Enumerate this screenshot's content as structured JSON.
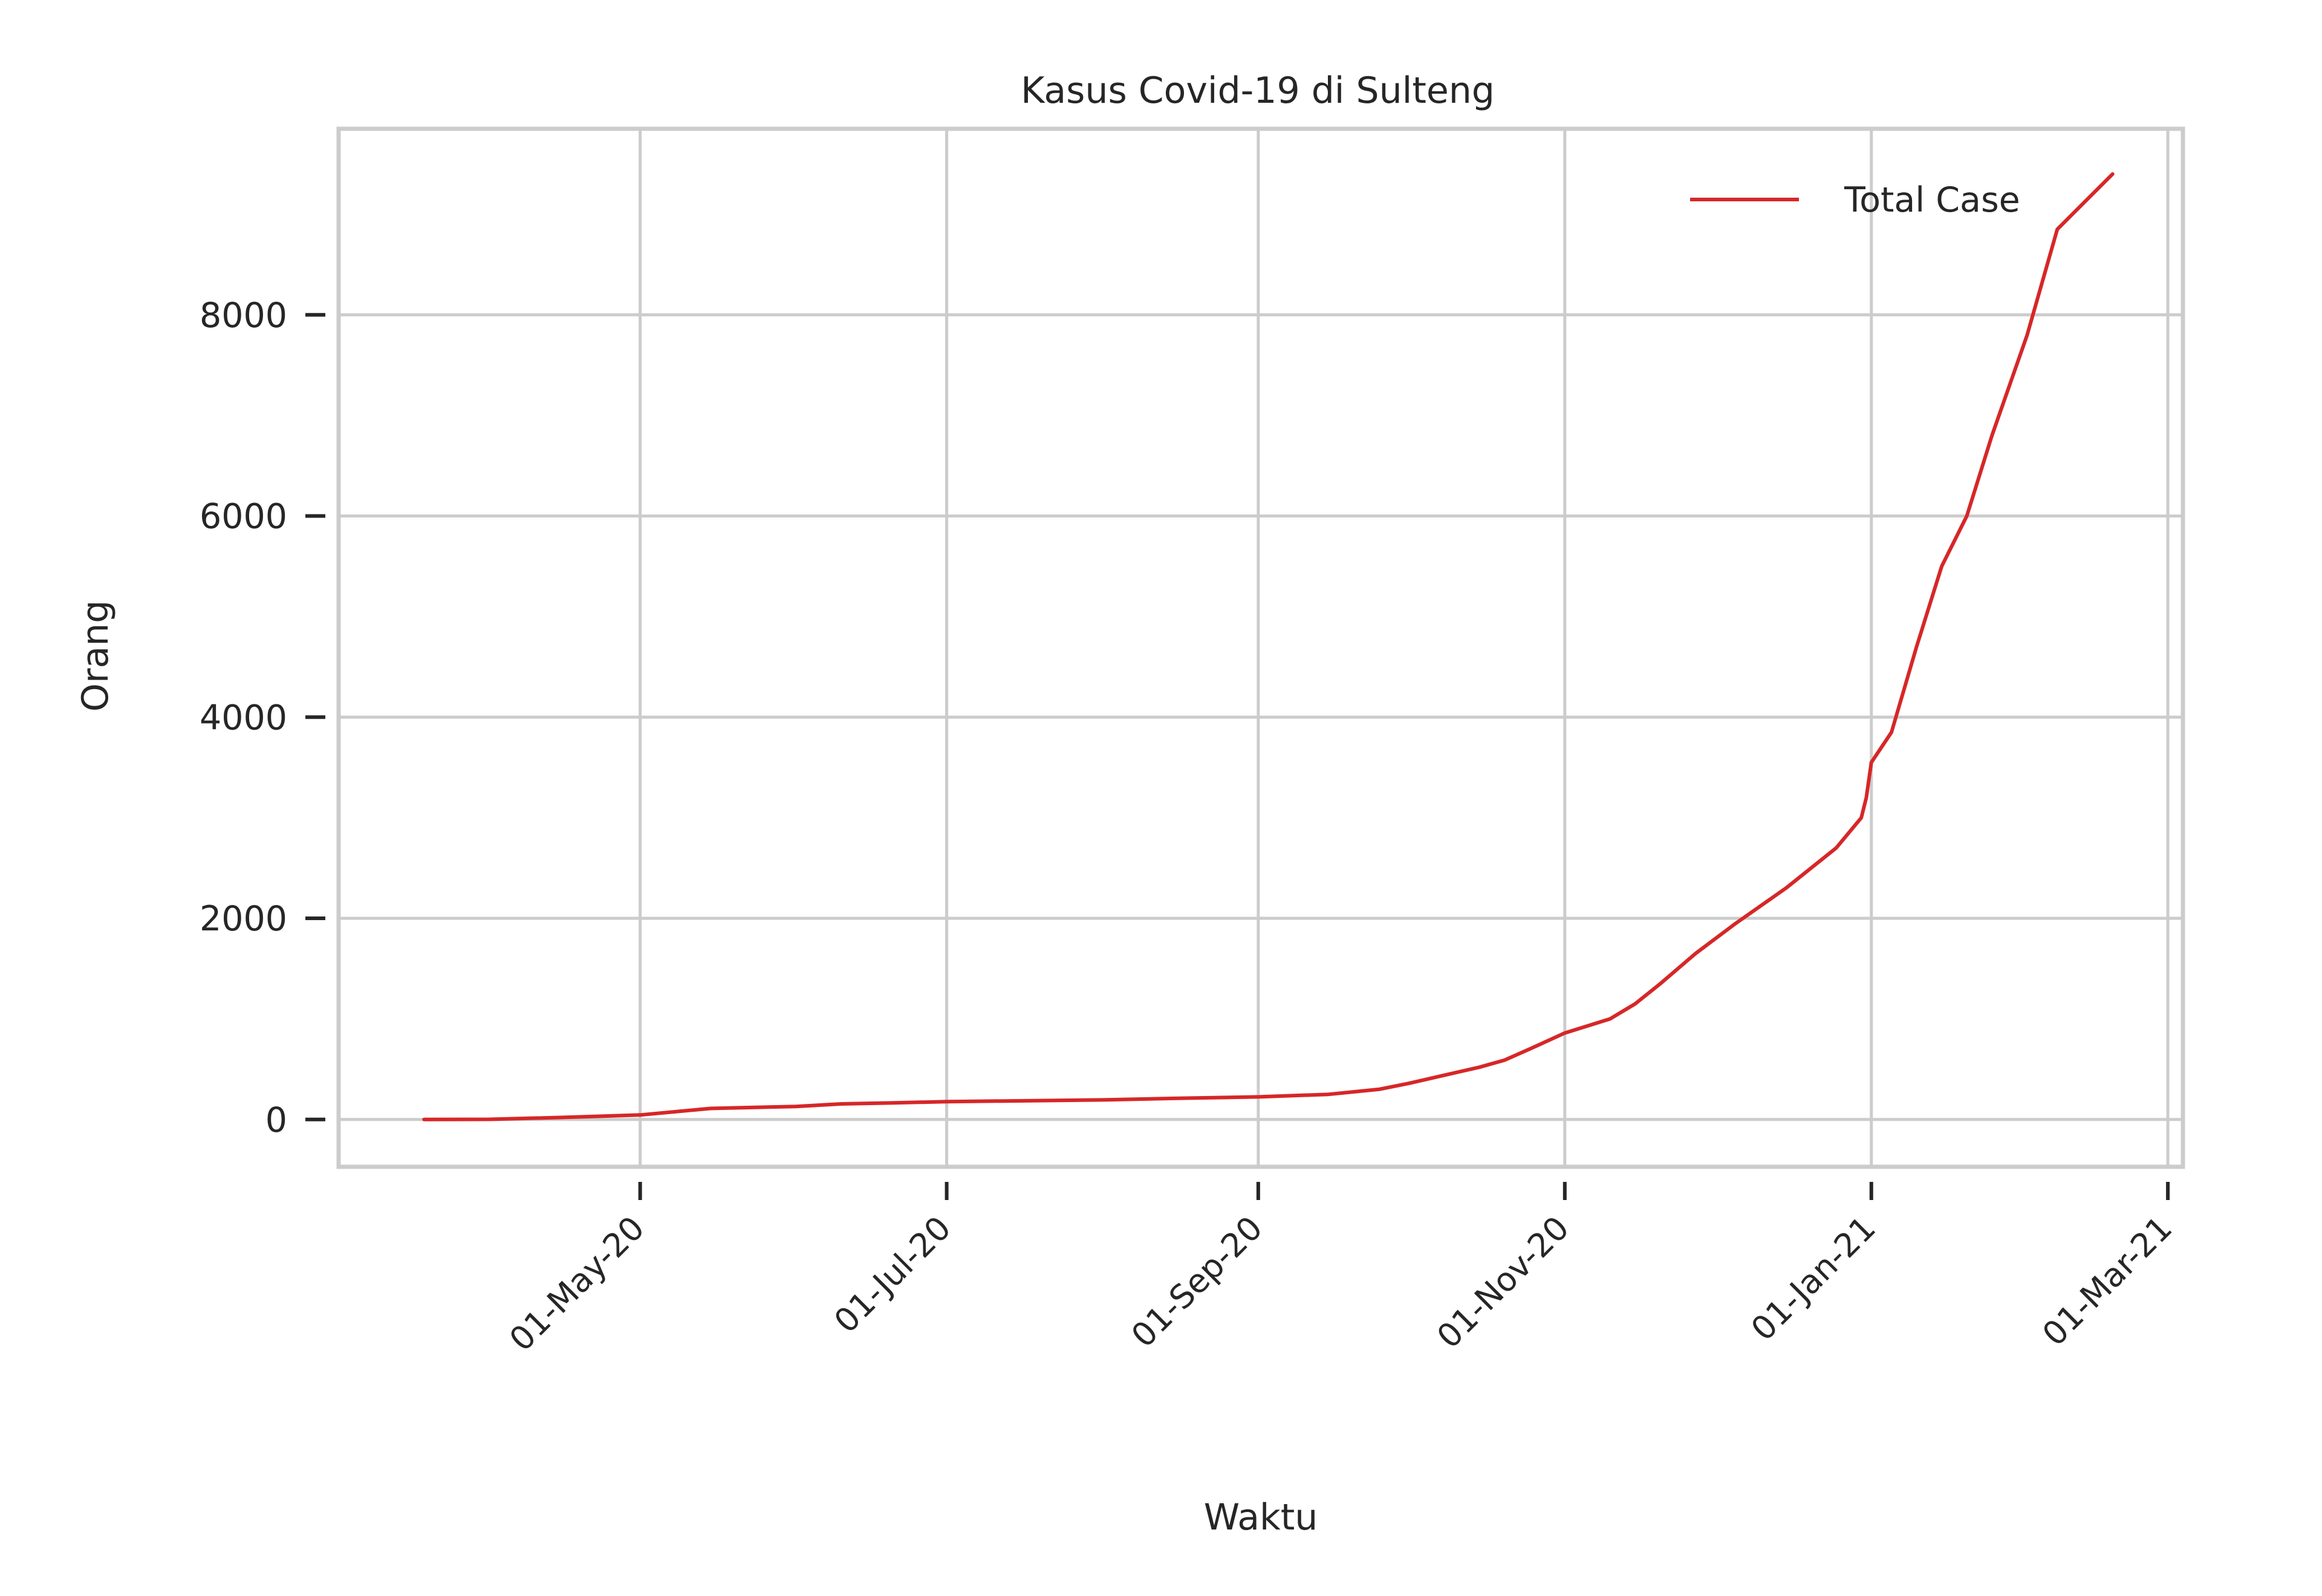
{
  "chart_data": {
    "type": "line",
    "title": "Kasus Covid-19 di Sulteng",
    "xlabel": "Waktu",
    "ylabel": "Orang",
    "x_ticks": [
      "01-May-20",
      "01-Jul-20",
      "01-Sep-20",
      "01-Nov-20",
      "01-Jan-21",
      "01-Mar-21"
    ],
    "y_ticks": [
      0,
      2000,
      4000,
      6000,
      8000
    ],
    "xlim": [
      "2020-03-02",
      "2021-03-04"
    ],
    "ylim": [
      -470,
      9850
    ],
    "grid": true,
    "legend_position": "upper right",
    "series": [
      {
        "name": "Total Case",
        "color": "#d62728",
        "points": [
          [
            "2020-03-19",
            0
          ],
          [
            "2020-04-01",
            2
          ],
          [
            "2020-04-15",
            20
          ],
          [
            "2020-05-01",
            45
          ],
          [
            "2020-05-15",
            110
          ],
          [
            "2020-06-01",
            130
          ],
          [
            "2020-06-10",
            155
          ],
          [
            "2020-06-20",
            165
          ],
          [
            "2020-07-01",
            178
          ],
          [
            "2020-07-15",
            185
          ],
          [
            "2020-08-01",
            195
          ],
          [
            "2020-08-15",
            210
          ],
          [
            "2020-09-01",
            225
          ],
          [
            "2020-09-15",
            250
          ],
          [
            "2020-09-25",
            300
          ],
          [
            "2020-10-01",
            360
          ],
          [
            "2020-10-15",
            520
          ],
          [
            "2020-10-20",
            590
          ],
          [
            "2020-10-25",
            700
          ],
          [
            "2020-11-01",
            860
          ],
          [
            "2020-11-10",
            1000
          ],
          [
            "2020-11-15",
            1150
          ],
          [
            "2020-11-20",
            1350
          ],
          [
            "2020-11-27",
            1650
          ],
          [
            "2020-12-05",
            1950
          ],
          [
            "2020-12-15",
            2300
          ],
          [
            "2020-12-25",
            2700
          ],
          [
            "2020-12-30",
            3000
          ],
          [
            "2020-12-31",
            3200
          ],
          [
            "2021-01-01",
            3550
          ],
          [
            "2021-01-05",
            3850
          ],
          [
            "2021-01-10",
            4700
          ],
          [
            "2021-01-15",
            5500
          ],
          [
            "2021-01-20",
            6000
          ],
          [
            "2021-01-25",
            6800
          ],
          [
            "2021-02-01",
            7800
          ],
          [
            "2021-02-07",
            8850
          ],
          [
            "2021-02-14",
            9200
          ],
          [
            "2021-02-18",
            9400
          ]
        ]
      }
    ]
  }
}
